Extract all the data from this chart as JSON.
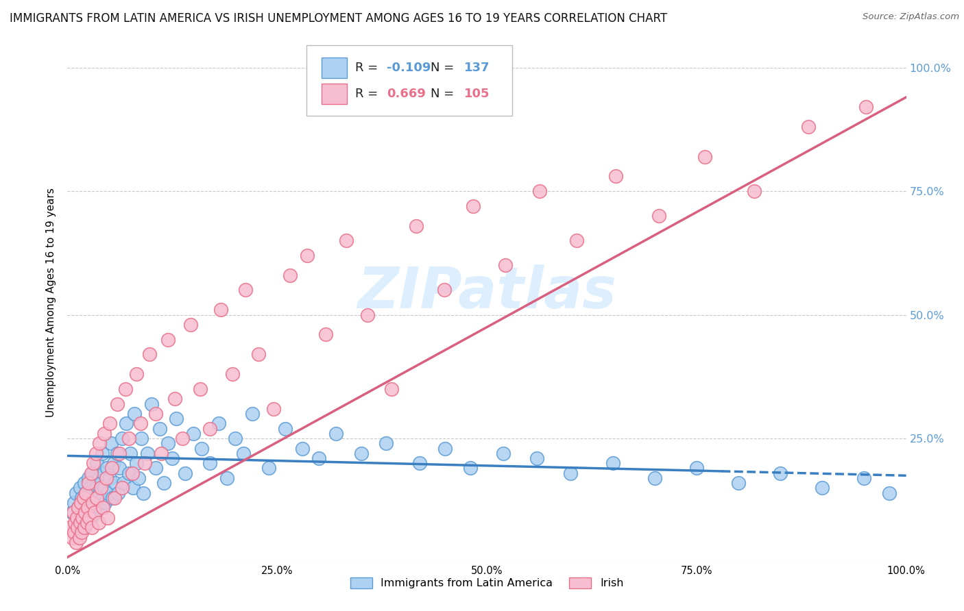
{
  "title": "IMMIGRANTS FROM LATIN AMERICA VS IRISH UNEMPLOYMENT AMONG AGES 16 TO 19 YEARS CORRELATION CHART",
  "source": "Source: ZipAtlas.com",
  "ylabel": "Unemployment Among Ages 16 to 19 years",
  "xlim": [
    0,
    1.0
  ],
  "ylim": [
    0,
    1.05
  ],
  "xticks": [
    0.0,
    0.25,
    0.5,
    0.75,
    1.0
  ],
  "xticklabels": [
    "0.0%",
    "25.0%",
    "50.0%",
    "75.0%",
    "100.0%"
  ],
  "ytick_positions": [
    0.0,
    0.25,
    0.5,
    0.75,
    1.0
  ],
  "yticklabels": [
    "",
    "25.0%",
    "50.0%",
    "75.0%",
    "100.0%"
  ],
  "legend_r_blue": "-0.109",
  "legend_n_blue": "137",
  "legend_r_pink": "0.669",
  "legend_n_pink": "105",
  "blue_color": "#ADD1F0",
  "pink_color": "#F7BDD0",
  "blue_edge_color": "#5B9BD5",
  "pink_edge_color": "#E8708A",
  "blue_line_color": "#3A7FC1",
  "pink_line_color": "#D95F7F",
  "watermark_text": "ZIPatlas",
  "background_color": "#FFFFFF",
  "blue_scatter_x": [
    0.005,
    0.008,
    0.01,
    0.012,
    0.013,
    0.015,
    0.015,
    0.017,
    0.018,
    0.019,
    0.02,
    0.02,
    0.021,
    0.022,
    0.022,
    0.023,
    0.023,
    0.025,
    0.025,
    0.026,
    0.027,
    0.028,
    0.028,
    0.029,
    0.03,
    0.03,
    0.031,
    0.032,
    0.033,
    0.034,
    0.035,
    0.036,
    0.037,
    0.038,
    0.039,
    0.04,
    0.041,
    0.042,
    0.043,
    0.044,
    0.045,
    0.047,
    0.048,
    0.05,
    0.052,
    0.054,
    0.055,
    0.057,
    0.059,
    0.06,
    0.062,
    0.065,
    0.067,
    0.07,
    0.073,
    0.075,
    0.078,
    0.08,
    0.082,
    0.085,
    0.088,
    0.09,
    0.095,
    0.1,
    0.105,
    0.11,
    0.115,
    0.12,
    0.125,
    0.13,
    0.14,
    0.15,
    0.16,
    0.17,
    0.18,
    0.19,
    0.2,
    0.21,
    0.22,
    0.24,
    0.26,
    0.28,
    0.3,
    0.32,
    0.35,
    0.38,
    0.42,
    0.45,
    0.48,
    0.52,
    0.56,
    0.6,
    0.65,
    0.7,
    0.75,
    0.8,
    0.85,
    0.9,
    0.95,
    0.98
  ],
  "blue_scatter_y": [
    0.1,
    0.12,
    0.14,
    0.08,
    0.11,
    0.09,
    0.15,
    0.13,
    0.07,
    0.11,
    0.1,
    0.16,
    0.12,
    0.09,
    0.14,
    0.11,
    0.08,
    0.13,
    0.17,
    0.1,
    0.15,
    0.12,
    0.09,
    0.14,
    0.18,
    0.11,
    0.16,
    0.13,
    0.1,
    0.15,
    0.2,
    0.12,
    0.17,
    0.14,
    0.11,
    0.16,
    0.22,
    0.13,
    0.18,
    0.15,
    0.12,
    0.19,
    0.14,
    0.17,
    0.24,
    0.13,
    0.2,
    0.16,
    0.22,
    0.14,
    0.19,
    0.25,
    0.16,
    0.28,
    0.18,
    0.22,
    0.15,
    0.3,
    0.2,
    0.17,
    0.25,
    0.14,
    0.22,
    0.32,
    0.19,
    0.27,
    0.16,
    0.24,
    0.21,
    0.29,
    0.18,
    0.26,
    0.23,
    0.2,
    0.28,
    0.17,
    0.25,
    0.22,
    0.3,
    0.19,
    0.27,
    0.23,
    0.21,
    0.26,
    0.22,
    0.24,
    0.2,
    0.23,
    0.19,
    0.22,
    0.21,
    0.18,
    0.2,
    0.17,
    0.19,
    0.16,
    0.18,
    0.15,
    0.17,
    0.14
  ],
  "pink_scatter_x": [
    0.003,
    0.005,
    0.007,
    0.008,
    0.009,
    0.01,
    0.011,
    0.012,
    0.013,
    0.014,
    0.015,
    0.016,
    0.017,
    0.018,
    0.019,
    0.02,
    0.021,
    0.022,
    0.023,
    0.024,
    0.025,
    0.026,
    0.028,
    0.029,
    0.03,
    0.031,
    0.032,
    0.034,
    0.035,
    0.037,
    0.038,
    0.04,
    0.042,
    0.044,
    0.046,
    0.048,
    0.05,
    0.053,
    0.056,
    0.059,
    0.062,
    0.065,
    0.069,
    0.073,
    0.077,
    0.082,
    0.087,
    0.092,
    0.098,
    0.105,
    0.112,
    0.12,
    0.128,
    0.137,
    0.147,
    0.158,
    0.17,
    0.183,
    0.197,
    0.212,
    0.228,
    0.246,
    0.265,
    0.286,
    0.308,
    0.332,
    0.358,
    0.386,
    0.416,
    0.449,
    0.484,
    0.522,
    0.563,
    0.607,
    0.654,
    0.705,
    0.76,
    0.819,
    0.883,
    0.952
  ],
  "pink_scatter_y": [
    0.07,
    0.05,
    0.1,
    0.06,
    0.08,
    0.04,
    0.09,
    0.07,
    0.11,
    0.05,
    0.08,
    0.12,
    0.06,
    0.09,
    0.13,
    0.07,
    0.1,
    0.14,
    0.08,
    0.11,
    0.16,
    0.09,
    0.18,
    0.07,
    0.12,
    0.2,
    0.1,
    0.22,
    0.13,
    0.08,
    0.24,
    0.15,
    0.11,
    0.26,
    0.17,
    0.09,
    0.28,
    0.19,
    0.13,
    0.32,
    0.22,
    0.15,
    0.35,
    0.25,
    0.18,
    0.38,
    0.28,
    0.2,
    0.42,
    0.3,
    0.22,
    0.45,
    0.33,
    0.25,
    0.48,
    0.35,
    0.27,
    0.51,
    0.38,
    0.55,
    0.42,
    0.31,
    0.58,
    0.62,
    0.46,
    0.65,
    0.5,
    0.35,
    0.68,
    0.55,
    0.72,
    0.6,
    0.75,
    0.65,
    0.78,
    0.7,
    0.82,
    0.75,
    0.88,
    0.92
  ],
  "blue_trend_x0": 0.0,
  "blue_trend_x1": 1.0,
  "blue_trend_y0": 0.215,
  "blue_trend_y1": 0.175,
  "pink_trend_x0": 0.0,
  "pink_trend_x1": 1.0,
  "pink_trend_y0": 0.01,
  "pink_trend_y1": 0.94,
  "grid_color": "#C8C8C8",
  "title_fontsize": 12,
  "axis_label_fontsize": 11,
  "tick_fontsize": 10.5,
  "watermark_fontsize": 60,
  "watermark_color": "#DDEEFF",
  "right_ytick_color": "#5B9BD5"
}
